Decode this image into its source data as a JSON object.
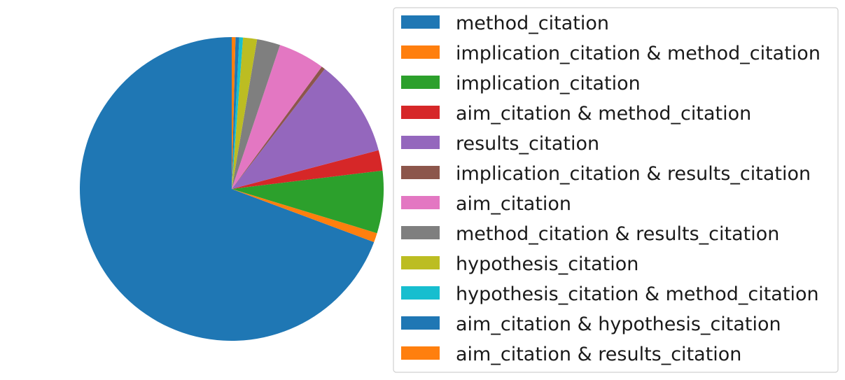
{
  "chart_data": {
    "type": "pie",
    "title": "",
    "start_angle_deg": 90,
    "direction": "counterclockwise",
    "legend_placement": "right",
    "slices": [
      {
        "label": "method_citation",
        "percent": 70.0,
        "color": "#1f77b4"
      },
      {
        "label": "implication_citation & method_citation",
        "percent": 1.0,
        "color": "#ff7f0e"
      },
      {
        "label": "implication_citation",
        "percent": 6.7,
        "color": "#2ca02c"
      },
      {
        "label": "aim_citation & method_citation",
        "percent": 2.2,
        "color": "#d62728"
      },
      {
        "label": "results_citation",
        "percent": 10.5,
        "color": "#9467bd"
      },
      {
        "label": "implication_citation & results_citation",
        "percent": 0.4,
        "color": "#8c564b"
      },
      {
        "label": "aim_citation",
        "percent": 5.0,
        "color": "#e377c2"
      },
      {
        "label": "method_citation & results_citation",
        "percent": 2.5,
        "color": "#7f7f7f"
      },
      {
        "label": "hypothesis_citation",
        "percent": 1.5,
        "color": "#bcbd22"
      },
      {
        "label": "hypothesis_citation & method_citation",
        "percent": 0.4,
        "color": "#17becf"
      },
      {
        "label": "aim_citation & hypothesis_citation",
        "percent": 0.4,
        "color": "#1f77b4"
      },
      {
        "label": "aim_citation & results_citation",
        "percent": 0.4,
        "color": "#ff7f0e"
      }
    ]
  }
}
